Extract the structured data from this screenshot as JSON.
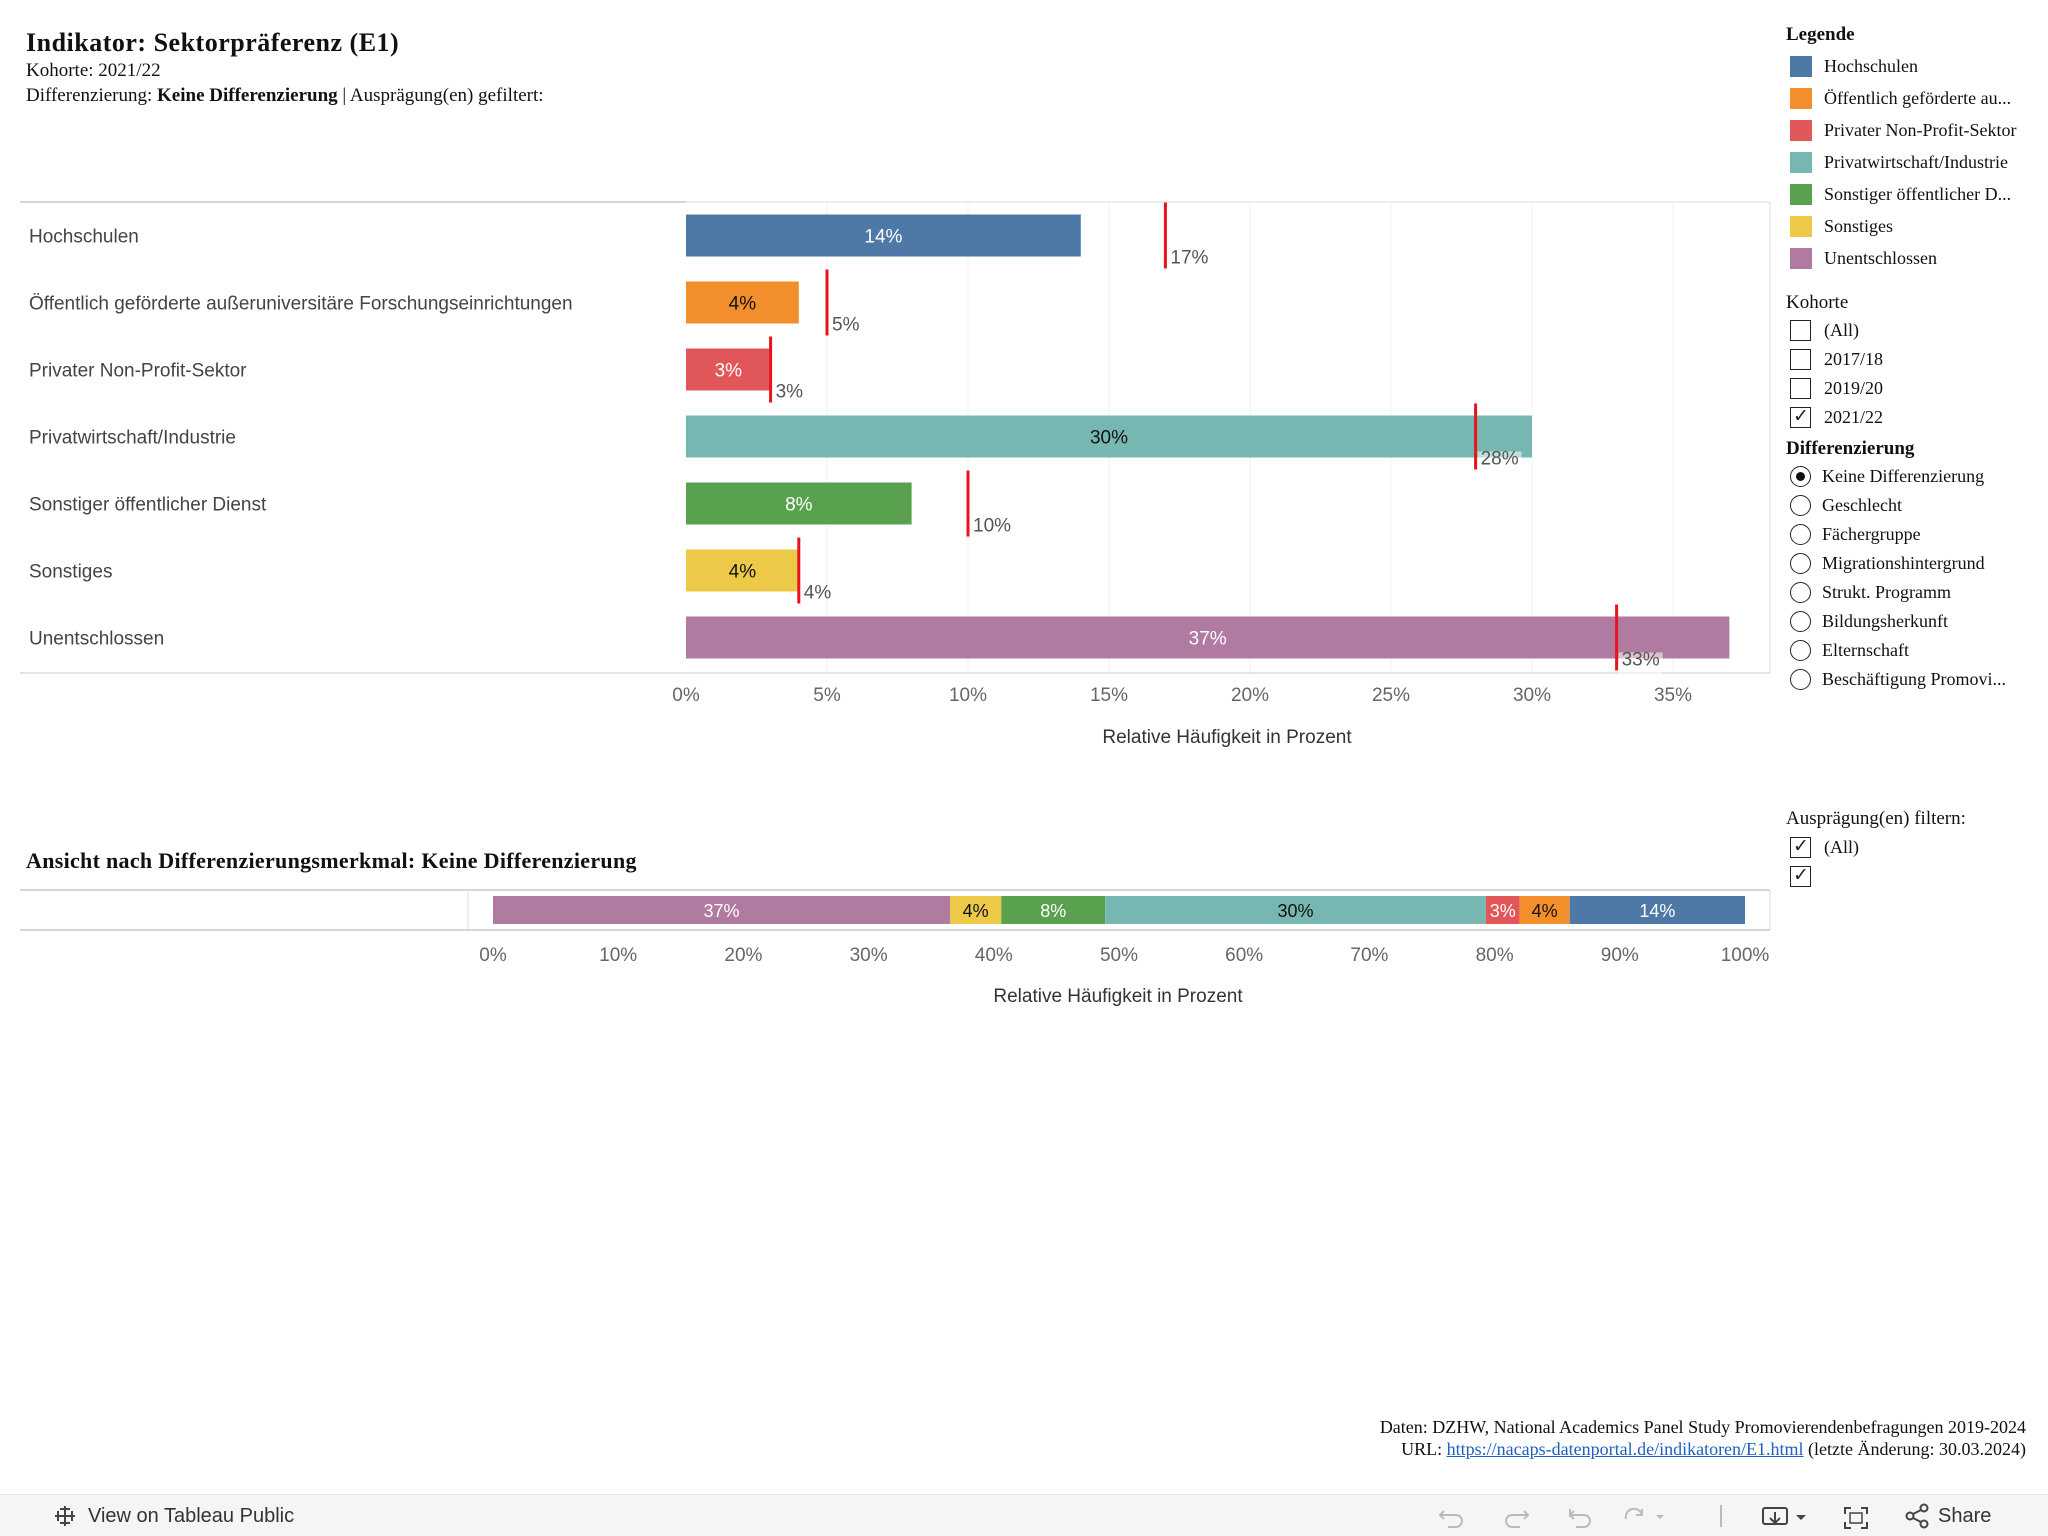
{
  "header": {
    "title": "Indikator:  Sektorpräferenz  (E1)",
    "kohorte_label": "Kohorte:",
    "kohorte_value": "2021/22",
    "diff_label": "Differenzierung:",
    "diff_value": "Keine  Differenzierung",
    "diff_suffix": "| Ausprägung(en)  gefiltert:"
  },
  "legend": {
    "title": "Legende",
    "items": [
      {
        "label": "Hochschulen",
        "color": "#4e79a7"
      },
      {
        "label": "Öffentlich geförderte au...",
        "color": "#f28e2b"
      },
      {
        "label": "Privater Non-Profit-Sektor",
        "color": "#e15759"
      },
      {
        "label": "Privatwirtschaft/Industrie",
        "color": "#76b7b2"
      },
      {
        "label": "Sonstiger öffentlicher D...",
        "color": "#59a14f"
      },
      {
        "label": "Sonstiges",
        "color": "#edc948"
      },
      {
        "label": "Unentschlossen",
        "color": "#b07aa1"
      }
    ]
  },
  "kohorte_filter": {
    "title": "Kohorte",
    "options": [
      {
        "label": "(All)",
        "checked": false
      },
      {
        "label": "2017/18",
        "checked": false
      },
      {
        "label": "2019/20",
        "checked": false
      },
      {
        "label": "2021/22",
        "checked": true
      }
    ]
  },
  "diff_filter": {
    "title": "Differenzierung",
    "options": [
      {
        "label": "Keine Differenzierung",
        "selected": true
      },
      {
        "label": "Geschlecht",
        "selected": false
      },
      {
        "label": "Fächergruppe",
        "selected": false
      },
      {
        "label": "Migrationshintergrund",
        "selected": false
      },
      {
        "label": "Strukt. Programm",
        "selected": false
      },
      {
        "label": "Bildungsherkunft",
        "selected": false
      },
      {
        "label": "Elternschaft",
        "selected": false
      },
      {
        "label": "Beschäftigung Promovi...",
        "selected": false
      }
    ]
  },
  "auspraegung_filter": {
    "title": "Ausprägung(en)  filtern:",
    "options": [
      {
        "label": "(All)",
        "checked": true
      },
      {
        "label": "",
        "checked": true
      }
    ]
  },
  "chart_data": [
    {
      "type": "bar",
      "orientation": "horizontal",
      "categories": [
        "Hochschulen",
        "Öffentlich geförderte außeruniversitäre Forschungseinrichtungen",
        "Privater Non-Profit-Sektor",
        "Privatwirtschaft/Industrie",
        "Sonstiger öffentlicher Dienst",
        "Sonstiges",
        "Unentschlossen"
      ],
      "values": [
        14,
        4,
        3,
        30,
        8,
        4,
        37
      ],
      "value_labels": [
        "14%",
        "4%",
        "3%",
        "30%",
        "8%",
        "4%",
        "37%"
      ],
      "colors": [
        "#4e79a7",
        "#f28e2b",
        "#e15759",
        "#76b7b2",
        "#59a14f",
        "#edc948",
        "#b07aa1"
      ],
      "reference_values": [
        17,
        5,
        3,
        28,
        10,
        4,
        33
      ],
      "reference_labels": [
        "17%",
        "5%",
        "3%",
        "28%",
        "10%",
        "4%",
        "33%"
      ],
      "reference_color": "#e8141c",
      "xlabel": "Relative Häufigkeit in Prozent",
      "xticks": [
        "0%",
        "5%",
        "10%",
        "15%",
        "20%",
        "25%",
        "30%",
        "35%"
      ],
      "xlim": [
        0,
        38
      ],
      "grid": true
    },
    {
      "type": "bar",
      "orientation": "horizontal",
      "stacked": true,
      "title": "Ansicht  nach  Differenzierungsmerkmal:  Keine  Differenzierung",
      "segments": [
        {
          "label": "37%",
          "value": 36.5,
          "color": "#b07aa1"
        },
        {
          "label": "4%",
          "value": 4.1,
          "color": "#edc948"
        },
        {
          "label": "8%",
          "value": 8.3,
          "color": "#59a14f"
        },
        {
          "label": "30%",
          "value": 30.4,
          "color": "#76b7b2"
        },
        {
          "label": "3%",
          "value": 2.7,
          "color": "#e15759"
        },
        {
          "label": "4%",
          "value": 4.0,
          "color": "#f28e2b"
        },
        {
          "label": "14%",
          "value": 14.0,
          "color": "#4e79a7"
        }
      ],
      "xlabel": "Relative Häufigkeit in Prozent",
      "xticks": [
        "0%",
        "10%",
        "20%",
        "30%",
        "40%",
        "50%",
        "60%",
        "70%",
        "80%",
        "90%",
        "100%"
      ],
      "xlim": [
        0,
        100
      ]
    }
  ],
  "footer": {
    "line1": "Daten:  DZHW,  National  Academics  Panel  Study  Promovierendenbefragungen  2019-2024",
    "url_prefix": "URL:",
    "url": "https://nacaps-datenportal.de/indikatoren/E1.html",
    "url_suffix": "(letzte  Änderung:  30.03.2024)"
  },
  "toolbar": {
    "view_label": "View on Tableau Public",
    "share_label": "Share"
  }
}
